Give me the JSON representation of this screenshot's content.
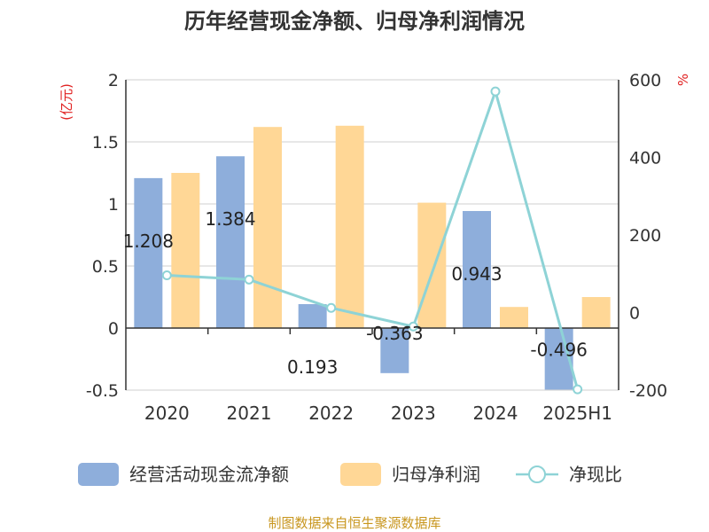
{
  "chart_data": {
    "type": "bar",
    "title": "历年经营现金净额、归母净利润情况",
    "left_unit": "(亿元)",
    "right_unit": "%",
    "categories": [
      "2020",
      "2021",
      "2022",
      "2023",
      "2024",
      "2025H1"
    ],
    "left_axis": {
      "min": -0.5,
      "max": 2,
      "ticks": [
        "2",
        "1.5",
        "1",
        "0.5",
        "0",
        "-0.5"
      ],
      "tick_values": [
        2,
        1.5,
        1,
        0.5,
        0,
        -0.5
      ]
    },
    "right_axis": {
      "min": -200,
      "max": 600,
      "ticks": [
        "600",
        "400",
        "200",
        "0",
        "-200"
      ],
      "tick_values": [
        600,
        400,
        200,
        0,
        -200
      ]
    },
    "grid": true,
    "series": [
      {
        "name": "经营活动现金流净额",
        "kind": "bar",
        "axis": "left",
        "color": "#8eaedb",
        "values": [
          1.208,
          1.384,
          0.193,
          -0.363,
          0.943,
          -0.496
        ],
        "labels": [
          "1.208",
          "1.384",
          "0.193",
          "-0.363",
          "0.943",
          "-0.496"
        ]
      },
      {
        "name": "归母净利润",
        "kind": "bar",
        "axis": "left",
        "color": "#ffd796",
        "values": [
          1.25,
          1.62,
          1.63,
          1.01,
          0.17,
          0.25
        ]
      },
      {
        "name": "净现比",
        "kind": "line",
        "axis": "right",
        "color": "#8ed3d6",
        "values": [
          96,
          85,
          12,
          -36,
          570,
          -198
        ]
      }
    ],
    "legend_position": "bottom",
    "source": "制图数据来自恒生聚源数据库"
  }
}
